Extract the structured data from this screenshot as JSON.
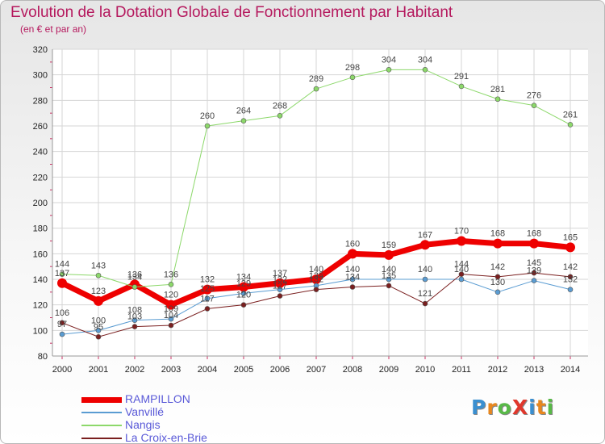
{
  "title": "Evolution de la Dotation Globale de Fonctionnement par Habitant",
  "subtitle": "(en € et par an)",
  "logo": {
    "text": "ProXiti",
    "colors": [
      "#3a8fd0",
      "#e8871e",
      "#58b947",
      "#e0372c",
      "#3a8fd0",
      "#e8871e",
      "#58b947"
    ]
  },
  "chart_data": {
    "type": "line",
    "title": "Evolution de la Dotation Globale de Fonctionnement par Habitant",
    "subtitle": "(en € et par an)",
    "xlabel": "",
    "ylabel": "",
    "x": [
      2000,
      2001,
      2002,
      2003,
      2004,
      2005,
      2006,
      2007,
      2008,
      2009,
      2010,
      2011,
      2012,
      2013,
      2014
    ],
    "ylim": [
      80,
      320
    ],
    "yticks": [
      80,
      100,
      120,
      140,
      160,
      180,
      200,
      220,
      240,
      260,
      280,
      300,
      320
    ],
    "grid": true,
    "legend_position": "bottom-left",
    "series": [
      {
        "name": "RAMPILLON",
        "color": "#ee0000",
        "width": 7,
        "values": [
          137,
          123,
          136,
          120,
          132,
          134,
          137,
          140,
          160,
          159,
          167,
          170,
          168,
          168,
          165
        ]
      },
      {
        "name": "Vanvillé",
        "color": "#5a9cd2",
        "width": 1,
        "values": [
          97,
          100,
          108,
          109,
          125,
          129,
          132,
          135,
          140,
          140,
          140,
          140,
          130,
          139,
          132
        ]
      },
      {
        "name": "Nangis",
        "color": "#8cd86a",
        "width": 1,
        "values": [
          144,
          143,
          134,
          136,
          260,
          264,
          268,
          289,
          298,
          304,
          304,
          291,
          281,
          276,
          261
        ]
      },
      {
        "name": "La Croix-en-Brie",
        "color": "#7a1f1f",
        "width": 1,
        "values": [
          106,
          95,
          103,
          104,
          117,
          120,
          127,
          132,
          134,
          135,
          121,
          144,
          142,
          145,
          142
        ]
      }
    ]
  }
}
